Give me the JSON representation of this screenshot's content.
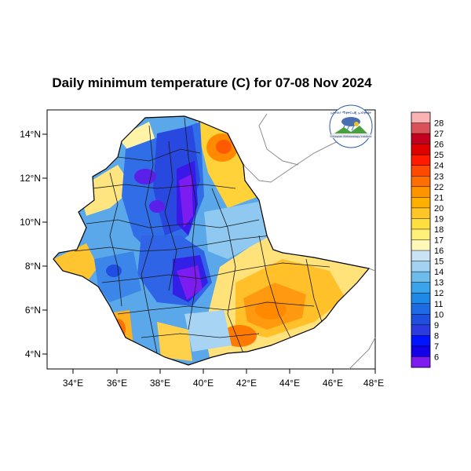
{
  "title": "Daily minimum temperature (C) for 07-08 Nov 2024",
  "axes": {
    "x_ticks": [
      "34°E",
      "36°E",
      "38°E",
      "40°E",
      "42°E",
      "44°E",
      "46°E",
      "48°E"
    ],
    "y_ticks": [
      "14°N",
      "12°N",
      "10°N",
      "8°N",
      "6°N",
      "4°N"
    ]
  },
  "logo": {
    "arc_text": "ኢትዮጵያ ሚቲዎሮሎጂ ኢንስቲትዩት",
    "caption": "Ethiopian Meteorology Institute"
  },
  "colorbar": {
    "labels": [
      "28",
      "27",
      "26",
      "25",
      "24",
      "23",
      "22",
      "21",
      "20",
      "19",
      "18",
      "17",
      "16",
      "15",
      "14",
      "13",
      "12",
      "11",
      "10",
      "9",
      "8",
      "7",
      "6"
    ],
    "colors": [
      "#f9b3b5",
      "#d9525a",
      "#c4001f",
      "#e00000",
      "#ff1a00",
      "#ff4a00",
      "#ff6e00",
      "#ff9400",
      "#ffb000",
      "#ffc627",
      "#ffdf3f",
      "#fff07a",
      "#fff8b8",
      "#c9e3f5",
      "#a3d2f0",
      "#6cbcec",
      "#3aa4ea",
      "#1e8ae8",
      "#1e6be6",
      "#1e4fe0",
      "#2c3be0",
      "#0014ff",
      "#1200e8",
      "#7c1cf0"
    ]
  }
}
